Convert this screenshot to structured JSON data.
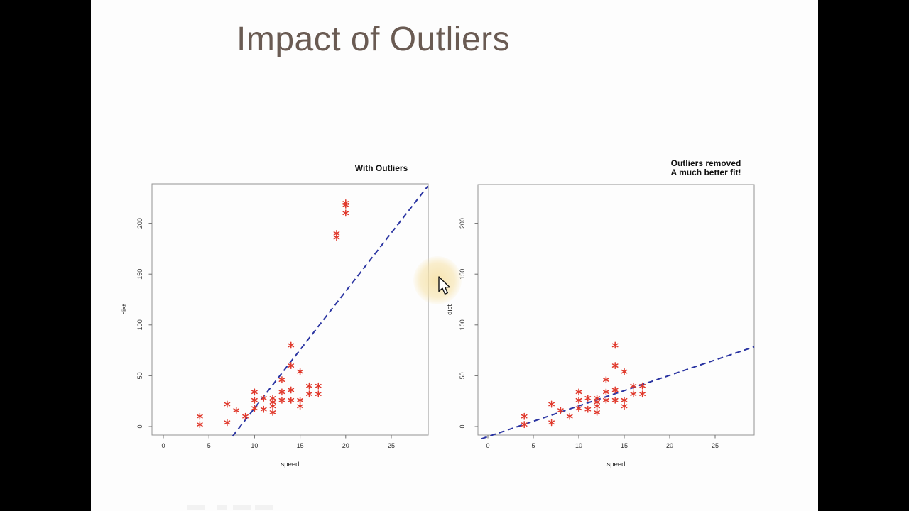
{
  "slide": {
    "title": "Impact of Outliers",
    "accent_orange": "#dd8047",
    "accent_blue": "#93b1cc",
    "title_color": "#6a5b53",
    "background": "#fdfdfd"
  },
  "cursor": {
    "name": "arrow-pointer",
    "highlight_color": "#f5de9c",
    "position_note": "between the two plots"
  },
  "chart_data": [
    {
      "type": "scatter",
      "title": "With Outliers",
      "subtitle": "",
      "xlabel": "speed",
      "ylabel": "dist",
      "xticks": [
        0,
        5,
        10,
        15,
        20,
        25
      ],
      "yticks": [
        0,
        50,
        100,
        150,
        200
      ],
      "xlim": [
        -1.2,
        29.1
      ],
      "ylim": [
        -8.5,
        239
      ],
      "grid": false,
      "marker": "asterisk",
      "marker_color": "#e0392c",
      "points": [
        [
          4,
          2
        ],
        [
          4,
          10
        ],
        [
          7,
          4
        ],
        [
          7,
          22
        ],
        [
          8,
          16
        ],
        [
          9,
          10
        ],
        [
          10,
          18
        ],
        [
          10,
          26
        ],
        [
          10,
          34
        ],
        [
          11,
          17
        ],
        [
          11,
          28
        ],
        [
          12,
          14
        ],
        [
          12,
          20
        ],
        [
          12,
          24
        ],
        [
          12,
          28
        ],
        [
          13,
          26
        ],
        [
          13,
          34
        ],
        [
          13,
          46
        ],
        [
          14,
          26
        ],
        [
          14,
          36
        ],
        [
          14,
          60
        ],
        [
          14,
          80
        ],
        [
          15,
          20
        ],
        [
          15,
          26
        ],
        [
          15,
          54
        ],
        [
          16,
          32
        ],
        [
          16,
          40
        ],
        [
          17,
          32
        ],
        [
          17,
          40
        ],
        [
          19,
          186
        ],
        [
          19,
          190
        ],
        [
          20,
          210
        ],
        [
          20,
          218
        ],
        [
          20,
          220
        ]
      ],
      "fit_line": {
        "style": "dashed",
        "color": "#2b35a2",
        "from": [
          7.6,
          -9.5
        ],
        "to": [
          29.0,
          236.5
        ]
      }
    },
    {
      "type": "scatter",
      "title": "Outliers removed",
      "subtitle": "A much better fit!",
      "xlabel": "speed",
      "ylabel": "dist",
      "xticks": [
        0,
        5,
        10,
        15,
        20,
        25
      ],
      "yticks": [
        0,
        50,
        100,
        150,
        200
      ],
      "xlim": [
        -1.2,
        29.3
      ],
      "ylim": [
        -8.5,
        239
      ],
      "grid": false,
      "marker": "asterisk",
      "marker_color": "#e0392c",
      "points": [
        [
          4,
          2
        ],
        [
          4,
          10
        ],
        [
          7,
          4
        ],
        [
          7,
          22
        ],
        [
          8,
          16
        ],
        [
          9,
          10
        ],
        [
          10,
          18
        ],
        [
          10,
          26
        ],
        [
          10,
          34
        ],
        [
          11,
          17
        ],
        [
          11,
          28
        ],
        [
          12,
          14
        ],
        [
          12,
          20
        ],
        [
          12,
          24
        ],
        [
          12,
          28
        ],
        [
          13,
          26
        ],
        [
          13,
          34
        ],
        [
          13,
          46
        ],
        [
          14,
          26
        ],
        [
          14,
          36
        ],
        [
          14,
          60
        ],
        [
          14,
          80
        ],
        [
          15,
          20
        ],
        [
          15,
          26
        ],
        [
          15,
          54
        ],
        [
          16,
          32
        ],
        [
          16,
          40
        ],
        [
          17,
          32
        ],
        [
          17,
          40
        ]
      ],
      "fit_line": {
        "style": "dashed",
        "color": "#2b35a2",
        "from": [
          -0.7,
          -12.0
        ],
        "to": [
          29.3,
          78.5
        ]
      }
    }
  ]
}
